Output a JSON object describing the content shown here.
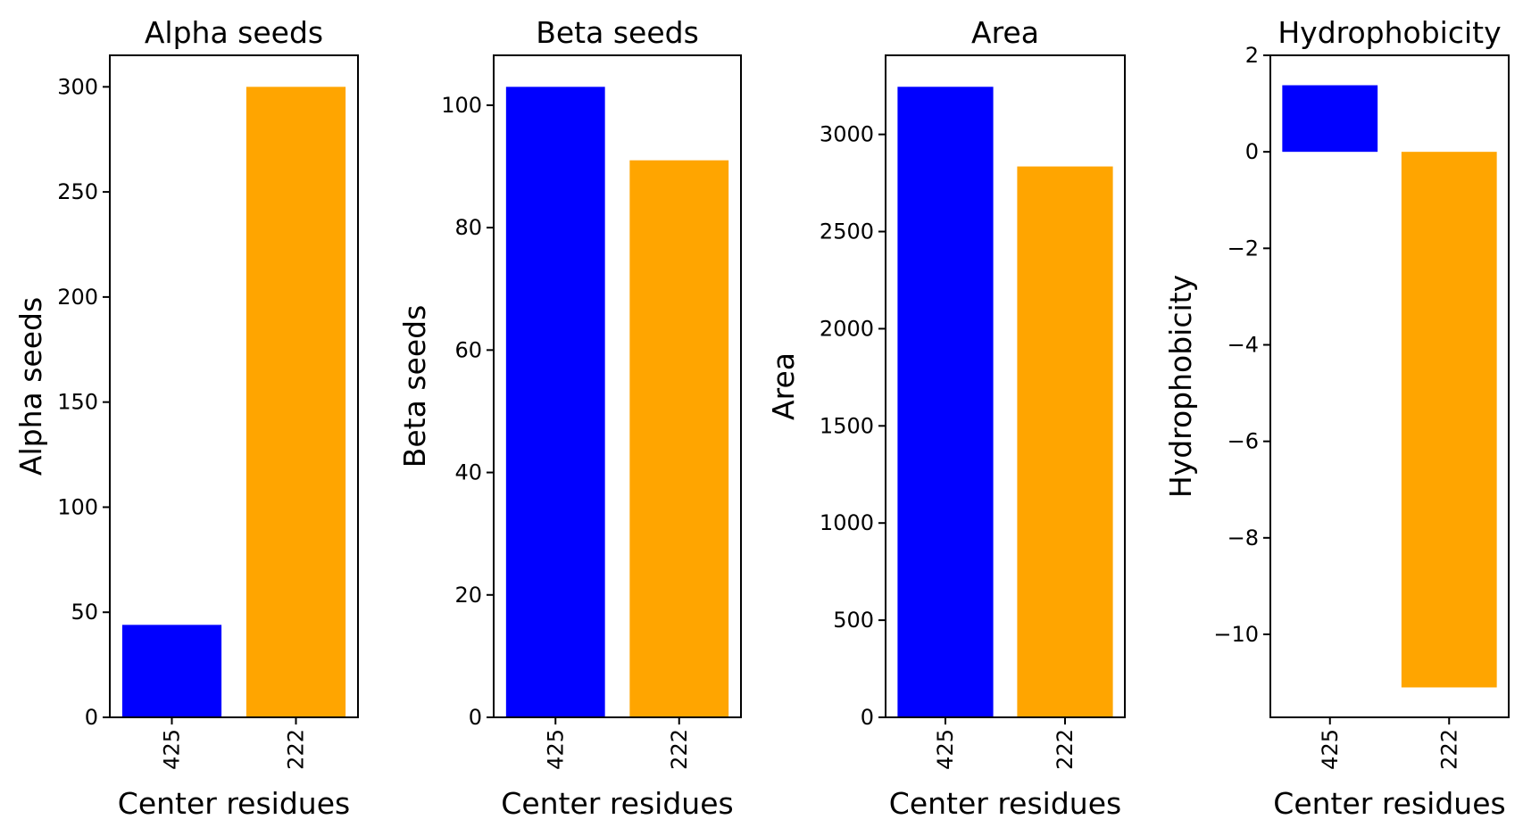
{
  "chart_data": [
    {
      "type": "bar",
      "title": "Alpha seeds",
      "xlabel": "Center residues",
      "ylabel": "Alpha seeds",
      "categories": [
        "425",
        "222"
      ],
      "values": [
        44,
        300
      ],
      "colors": [
        "#0000ff",
        "#ffa500"
      ],
      "ylim": [
        0,
        315
      ],
      "yticks": [
        0,
        50,
        100,
        150,
        200,
        250,
        300
      ],
      "ytick_labels": [
        "0",
        "50",
        "100",
        "150",
        "200",
        "250",
        "300"
      ],
      "grid": false
    },
    {
      "type": "bar",
      "title": "Beta seeds",
      "xlabel": "Center residues",
      "ylabel": "Beta seeds",
      "categories": [
        "425",
        "222"
      ],
      "values": [
        103,
        91
      ],
      "colors": [
        "#0000ff",
        "#ffa500"
      ],
      "ylim": [
        0,
        108.15
      ],
      "yticks": [
        0,
        20,
        40,
        60,
        80,
        100
      ],
      "ytick_labels": [
        "0",
        "20",
        "40",
        "60",
        "80",
        "100"
      ],
      "grid": false
    },
    {
      "type": "bar",
      "title": "Area",
      "xlabel": "Center residues",
      "ylabel": "Area",
      "categories": [
        "425",
        "222"
      ],
      "values": [
        3245,
        2835
      ],
      "colors": [
        "#0000ff",
        "#ffa500"
      ],
      "ylim": [
        0,
        3407
      ],
      "yticks": [
        0,
        500,
        1000,
        1500,
        2000,
        2500,
        3000
      ],
      "ytick_labels": [
        "0",
        "500",
        "1000",
        "1500",
        "2000",
        "2500",
        "3000"
      ],
      "grid": false
    },
    {
      "type": "bar",
      "title": "Hydrophobicity",
      "xlabel": "Center residues",
      "ylabel": "Hydrophobicity",
      "categories": [
        "425",
        "222"
      ],
      "values": [
        1.38,
        -11.1
      ],
      "colors": [
        "#0000ff",
        "#ffa500"
      ],
      "ylim": [
        -11.72,
        2.0
      ],
      "yticks": [
        2,
        0,
        -2,
        -4,
        -6,
        -8,
        -10
      ],
      "ytick_labels": [
        "2",
        "0",
        "−2",
        "−4",
        "−6",
        "−8",
        "−10"
      ],
      "grid": false
    }
  ]
}
